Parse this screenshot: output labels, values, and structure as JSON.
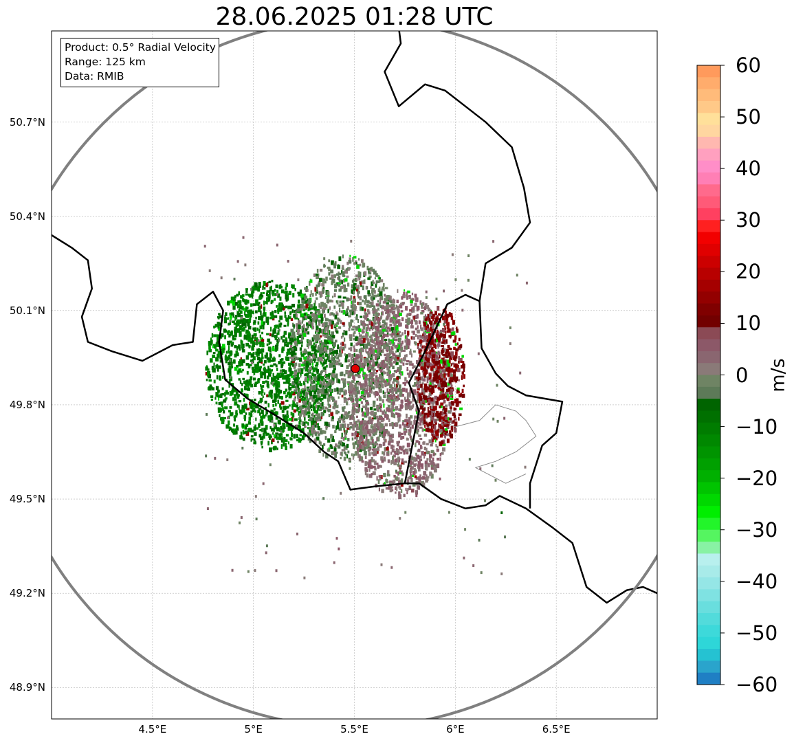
{
  "title": "28.06.2025 01:28 UTC",
  "info": [
    "Product: 0.5° Radial Velocity",
    "Range: 125 km",
    "Data: RMIB"
  ],
  "chart_data": {
    "type": "heatmap",
    "title": "28.06.2025 01:28 UTC",
    "xlim": [
      4.0,
      7.0
    ],
    "ylim": [
      48.8,
      50.99
    ],
    "xticks": [
      "4.5°E",
      "5°E",
      "5.5°E",
      "6°E",
      "6.5°E"
    ],
    "xtick_values": [
      4.5,
      5.0,
      5.5,
      6.0,
      6.5
    ],
    "yticks": [
      "48.9°N",
      "49.2°N",
      "49.5°N",
      "49.8°N",
      "50.1°N",
      "50.4°N",
      "50.7°N"
    ],
    "ytick_values": [
      48.9,
      49.2,
      49.5,
      49.8,
      50.1,
      50.4,
      50.7
    ],
    "grid": true,
    "radar_site": {
      "lon": 5.505,
      "lat": 49.915,
      "color": "#e00000"
    },
    "range_ring_km": 125,
    "colorbar": {
      "label": "m/s",
      "vmin": -60,
      "vmax": 60,
      "ticks": [
        "60",
        "50",
        "40",
        "30",
        "20",
        "10",
        "0",
        "−10",
        "−20",
        "−30",
        "−40",
        "−50",
        "−60"
      ],
      "tick_values": [
        60,
        50,
        40,
        30,
        20,
        10,
        0,
        -10,
        -20,
        -30,
        -40,
        -50,
        -60
      ],
      "colors_top_to_bottom": [
        "#ff9a5c",
        "#ffac6c",
        "#ffbb7a",
        "#ffc988",
        "#ffe09a",
        "#ffd6a0",
        "#ffb8b0",
        "#ffa0bf",
        "#ff8ec8",
        "#ff7fb5",
        "#ff6a8c",
        "#ff5a78",
        "#ff4060",
        "#ff2020",
        "#f20000",
        "#e00000",
        "#cc0000",
        "#b80000",
        "#a50000",
        "#930000",
        "#800000",
        "#720000",
        "#8b4a55",
        "#8c5868",
        "#8a6670",
        "#8a7a78",
        "#6f8464",
        "#5d7a58",
        "#006400",
        "#007000",
        "#007c00",
        "#008800",
        "#009400",
        "#00a000",
        "#00b000",
        "#00c400",
        "#00d800",
        "#00ee00",
        "#22f52a",
        "#55f560",
        "#88f2a4",
        "#b8f0ee",
        "#a8ebe9",
        "#95e6e6",
        "#7fe2e2",
        "#69dede",
        "#52dbdb",
        "#3dd9da",
        "#2ed6d8",
        "#25c2d2",
        "#2aa4cc",
        "#1f7fc4"
      ]
    },
    "echo_regions": [
      {
        "name": "inbound",
        "lon": 5.08,
        "lat": 49.93,
        "rx_deg": 0.32,
        "ry_deg": 0.27,
        "velocity_ms": -10
      },
      {
        "name": "near-zero",
        "lon": 5.45,
        "lat": 49.95,
        "rx_deg": 0.28,
        "ry_deg": 0.33,
        "velocity_ms": -2
      },
      {
        "name": "near-zero-east",
        "lon": 5.72,
        "lat": 49.84,
        "rx_deg": 0.26,
        "ry_deg": 0.33,
        "velocity_ms": 3
      },
      {
        "name": "outbound",
        "lon": 5.92,
        "lat": 49.9,
        "rx_deg": 0.12,
        "ry_deg": 0.22,
        "velocity_ms": 12
      }
    ],
    "colors": {
      "grid": "#b4b4b4",
      "border": "#000000",
      "ring": "#808080",
      "subregion": "#8a8a8a"
    }
  },
  "colorbar_label": "m/s"
}
